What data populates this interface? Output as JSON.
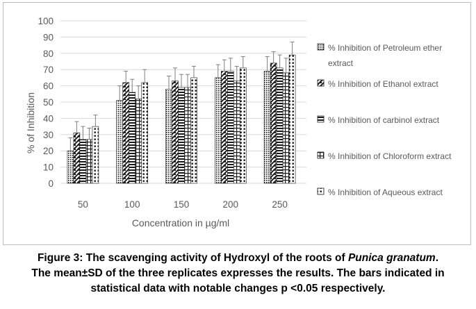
{
  "chart_data": {
    "type": "bar",
    "categories": [
      "50",
      "100",
      "150",
      "200",
      "250"
    ],
    "series": [
      {
        "name": "% Inhibition of Petroleum ether extract",
        "values": [
          20,
          51,
          58,
          65,
          69
        ],
        "errors": [
          8,
          9,
          8,
          8,
          9
        ],
        "pattern": "dots-fine"
      },
      {
        "name": "% Inhibition of Ethanol extract",
        "values": [
          31,
          62,
          63,
          69,
          74
        ],
        "errors": [
          7,
          7,
          8,
          7,
          7
        ],
        "pattern": "diagonal-check"
      },
      {
        "name": "% Inhibition of carbinol extract",
        "values": [
          27,
          56,
          59,
          69,
          71
        ],
        "errors": [
          8,
          8,
          8,
          8,
          8
        ],
        "pattern": "horizontal-lines"
      },
      {
        "name": "% Inhibition of Chloroform extract",
        "values": [
          27,
          52,
          59,
          63,
          68
        ],
        "errors": [
          7,
          8,
          8,
          9,
          9
        ],
        "pattern": "grid-cross"
      },
      {
        "name": "% Inhibition of Aqueous extract",
        "values": [
          35,
          62,
          65,
          71,
          79
        ],
        "errors": [
          7,
          8,
          7,
          7,
          8
        ],
        "pattern": "dots-coarse"
      }
    ],
    "xlabel": "Concentration in µg/ml",
    "ylabel": "% of Inhibition",
    "ylim": [
      0,
      100
    ],
    "yticks": [
      0,
      10,
      20,
      30,
      40,
      50,
      60,
      70,
      80,
      90,
      100
    ],
    "grid": true,
    "legend_position": "right",
    "colors": {
      "bar_ink": "#1a1a1a",
      "grid": "#d9d9d9",
      "axis_text": "#595959"
    }
  },
  "caption": {
    "line1_before": "Figure 3: The scavenging activity of Hydroxyl of the roots of ",
    "line1_italic": "Punica granatum",
    "line1_after": ".",
    "line2": "The mean±SD of the three replicates expresses the results. The bars indicated in",
    "line3": "statistical data with notable changes p <0.05 respectively."
  }
}
